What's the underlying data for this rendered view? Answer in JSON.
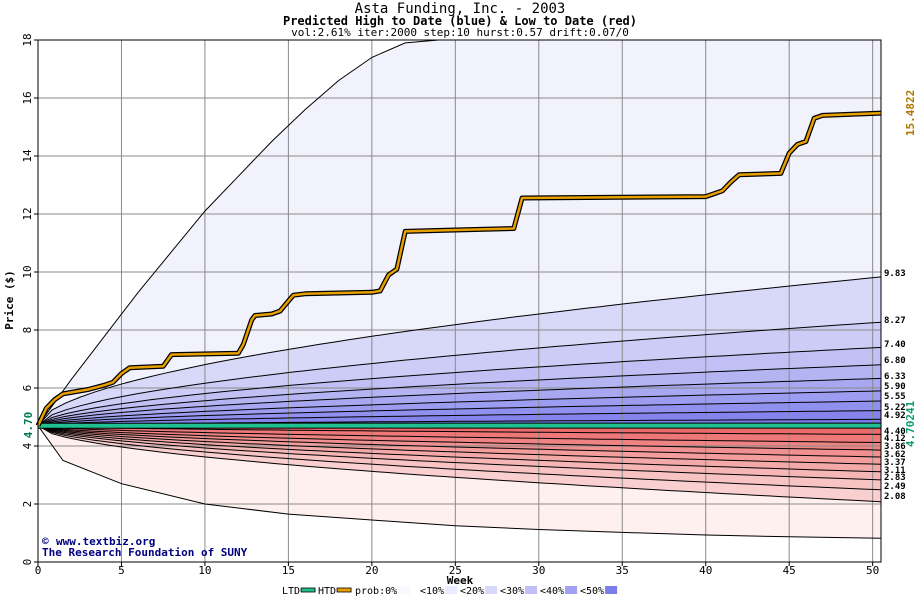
{
  "chart_data": {
    "type": "area",
    "title": "Asta Funding, Inc. - 2003",
    "subtitle": "Predicted High to Date (blue) &  Low to Date (red)",
    "params": "vol:2.61% iter:2000 step:10 hurst:0.57 drift:0.07/0",
    "xlabel": "Week",
    "ylabel": "Price ($)",
    "xlim": [
      0,
      50.5
    ],
    "ylim": [
      0,
      18
    ],
    "xticks": [
      0,
      5,
      10,
      15,
      20,
      25,
      30,
      35,
      40,
      45,
      50
    ],
    "yticks": [
      0,
      2,
      4,
      6,
      8,
      10,
      12,
      14,
      16,
      18
    ],
    "grid": true,
    "start_price": 4.7,
    "start_label": "4.70",
    "last_high": 15.4822,
    "last_high_label": "15.4822",
    "last_low": 4.70241,
    "last_low_label": "4.70241",
    "high_percentiles": [
      {
        "label": "9.83",
        "value": 9.83
      },
      {
        "label": "8.27",
        "value": 8.27
      },
      {
        "label": "7.40",
        "value": 7.4
      },
      {
        "label": "6.80",
        "value": 6.8
      },
      {
        "label": "6.33",
        "value": 6.33
      },
      {
        "label": "5.90",
        "value": 5.9
      },
      {
        "label": "5.55",
        "value": 5.55
      },
      {
        "label": "5.22",
        "value": 5.22
      },
      {
        "label": "4.92",
        "value": 4.92
      }
    ],
    "low_percentiles": [
      {
        "label": "4.40",
        "value": 4.4
      },
      {
        "label": "4.12",
        "value": 4.12
      },
      {
        "label": "3.86",
        "value": 3.86
      },
      {
        "label": "3.62",
        "value": 3.62
      },
      {
        "label": "3.37",
        "value": 3.37
      },
      {
        "label": "3.11",
        "value": 3.11
      },
      {
        "label": "2.83",
        "value": 2.83
      },
      {
        "label": "2.49",
        "value": 2.49
      },
      {
        "label": "2.08",
        "value": 2.08
      }
    ],
    "high_envelope_max": {
      "x": [
        0,
        2,
        4,
        6,
        8,
        10,
        12,
        14,
        16,
        18,
        20,
        22,
        24
      ],
      "y": [
        4.7,
        6.3,
        7.8,
        9.3,
        10.7,
        12.1,
        13.3,
        14.5,
        15.6,
        16.6,
        17.4,
        17.9,
        18.0
      ]
    },
    "low_envelope_min": {
      "x": [
        0,
        1.5,
        5,
        10,
        15,
        20,
        25,
        30,
        35,
        40,
        45,
        50.5
      ],
      "y": [
        4.7,
        3.5,
        2.7,
        2.0,
        1.65,
        1.45,
        1.25,
        1.12,
        1.02,
        0.93,
        0.87,
        0.82
      ]
    },
    "high_to_date": {
      "name": "HTD",
      "x": [
        0,
        0.5,
        1,
        1.5,
        2,
        3,
        4,
        4.5,
        5,
        5.5,
        7.5,
        8,
        12,
        12.3,
        12.8,
        13,
        14,
        14.5,
        15,
        15.3,
        16,
        20,
        20.5,
        21,
        21.5,
        22,
        25,
        28.5,
        29,
        40,
        40.5,
        41,
        41.5,
        42,
        44.5,
        45,
        45.5,
        46,
        46.5,
        47,
        50.5
      ],
      "y": [
        4.7,
        5.3,
        5.6,
        5.8,
        5.85,
        5.95,
        6.1,
        6.2,
        6.5,
        6.7,
        6.75,
        7.15,
        7.2,
        7.5,
        8.35,
        8.5,
        8.55,
        8.65,
        9.0,
        9.2,
        9.25,
        9.3,
        9.35,
        9.9,
        10.1,
        11.4,
        11.45,
        11.5,
        12.55,
        12.6,
        12.7,
        12.8,
        13.1,
        13.35,
        13.4,
        14.1,
        14.4,
        14.5,
        15.3,
        15.4,
        15.48
      ]
    },
    "low_to_date": {
      "name": "LTD",
      "x": [
        0,
        50.5
      ],
      "y": [
        4.7,
        4.70241
      ]
    },
    "legend": {
      "items": [
        "LTD",
        "HTD",
        "prob:0%",
        "<10%",
        "<20%",
        "<30%",
        "<40%",
        "<50%"
      ],
      "colors": {
        "LTD": "#20c090",
        "HTD": "#e8a000",
        "p0": "#f8f8ff",
        "p10": "#ebebff",
        "p20": "#d8d8fc",
        "p30": "#c0c0f6",
        "p40": "#a0a0f0",
        "p50": "#7c7cea"
      }
    },
    "colors": {
      "high_band_outer": "#f2f2fd",
      "low_band_outer": "#fef0ef",
      "high_band_inner": "#7878ea",
      "low_band_inner": "#ec6a6a",
      "htd_line": "#e8a000",
      "ltd_line": "#20c090",
      "last_high_label": "#b07800",
      "last_low_label": "#10a070"
    }
  },
  "credit": {
    "symbol": "©",
    "site": "www.textbiz.org",
    "org": "The Research Foundation of SUNY"
  }
}
